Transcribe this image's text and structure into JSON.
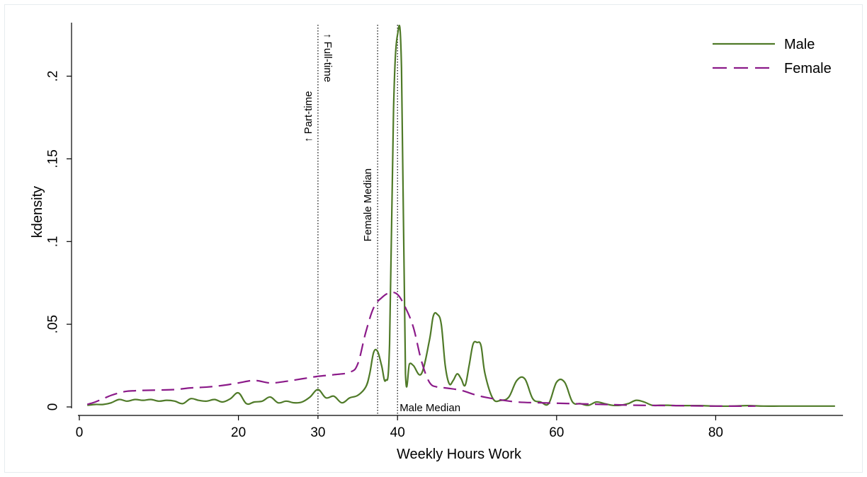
{
  "chart_data": {
    "type": "line",
    "xlabel": "Weekly Hours Work",
    "ylabel": "kdensity",
    "xlim": [
      0,
      96
    ],
    "ylim": [
      0,
      0.235
    ],
    "x_ticks": [
      {
        "value": 0,
        "label": "0"
      },
      {
        "value": 20,
        "label": "20"
      },
      {
        "value": 40,
        "label": "40"
      },
      {
        "value": 60,
        "label": "60"
      },
      {
        "value": 80,
        "label": "80"
      }
    ],
    "x_minor_ticks": [
      30
    ],
    "x_minor_labels": [
      {
        "value": 30,
        "label": "30"
      }
    ],
    "y_ticks": [
      {
        "value": 0,
        "label": "0"
      },
      {
        "value": 0.05,
        "label": ".05"
      },
      {
        "value": 0.1,
        "label": ".1"
      },
      {
        "value": 0.15,
        "label": ".15"
      },
      {
        "value": 0.2,
        "label": ".2"
      }
    ],
    "grid": false,
    "legend_position": "top-right",
    "reference_lines": [
      {
        "x": 30,
        "labels": [
          {
            "text": "↑ Part-time",
            "side": "left",
            "y": 0.16
          },
          {
            "text": "↑ Full-time",
            "side": "right",
            "y": 0.225
          }
        ]
      },
      {
        "x": 37.5,
        "labels": [
          {
            "text": "Female Median",
            "side": "left",
            "y": 0.1
          }
        ]
      },
      {
        "x": 40,
        "labels": [
          {
            "text": "Male Median",
            "side": "right-horizontal",
            "y": 0.0
          }
        ]
      }
    ],
    "series": [
      {
        "name": "Male",
        "color": "#4f7a28",
        "dash": "solid",
        "x": [
          1,
          2,
          3,
          4,
          5,
          6,
          7,
          8,
          9,
          10,
          11,
          12,
          13,
          14,
          15,
          16,
          17,
          18,
          19,
          20,
          21,
          22,
          23,
          24,
          25,
          26,
          27,
          28,
          29,
          30,
          31,
          32,
          33,
          34,
          35,
          36,
          36.5,
          37,
          37.5,
          38,
          38.5,
          39,
          39.5,
          40,
          40.5,
          41,
          41.5,
          42,
          43,
          44,
          44.5,
          45,
          45.5,
          46,
          46.5,
          47,
          47.5,
          48,
          48.5,
          49,
          49.5,
          50,
          50.5,
          51,
          52,
          53,
          54,
          55,
          56,
          57,
          58,
          59,
          60,
          61,
          62,
          63,
          64,
          65,
          66,
          67,
          68,
          69,
          70,
          71,
          72,
          73,
          74,
          75,
          76,
          78,
          80,
          82,
          84,
          86,
          88,
          90,
          92,
          94,
          95
        ],
        "y": [
          0.001,
          0.0015,
          0.0015,
          0.0025,
          0.0045,
          0.0035,
          0.0045,
          0.004,
          0.0045,
          0.0035,
          0.004,
          0.0035,
          0.002,
          0.005,
          0.004,
          0.0035,
          0.0045,
          0.003,
          0.005,
          0.0085,
          0.002,
          0.003,
          0.0035,
          0.006,
          0.0025,
          0.0035,
          0.0025,
          0.003,
          0.006,
          0.0105,
          0.0055,
          0.0065,
          0.0025,
          0.0055,
          0.007,
          0.012,
          0.02,
          0.033,
          0.0335,
          0.025,
          0.016,
          0.038,
          0.18,
          0.225,
          0.205,
          0.02,
          0.026,
          0.025,
          0.02,
          0.04,
          0.055,
          0.056,
          0.05,
          0.025,
          0.014,
          0.016,
          0.02,
          0.017,
          0.013,
          0.025,
          0.038,
          0.039,
          0.037,
          0.02,
          0.005,
          0.004,
          0.006,
          0.016,
          0.017,
          0.005,
          0.003,
          0.002,
          0.015,
          0.015,
          0.003,
          0.002,
          0.001,
          0.003,
          0.002,
          0.001,
          0.001,
          0.002,
          0.004,
          0.003,
          0.001,
          0.001,
          0.001,
          0.0008,
          0.0008,
          0.0008,
          0.0005,
          0.0005,
          0.0008,
          0.0005,
          0.0005,
          0.0005,
          0.0005,
          0.0005,
          0.0005
        ]
      },
      {
        "name": "Female",
        "color": "#8b1a89",
        "dash": "long-dash",
        "x": [
          1,
          2,
          3,
          4,
          5,
          6,
          7,
          8,
          10,
          12,
          14,
          16,
          18,
          20,
          22,
          24,
          26,
          28,
          30,
          32,
          34,
          35,
          36,
          37,
          38,
          39,
          40,
          41,
          42,
          43,
          44,
          45,
          46,
          48,
          50,
          52,
          55,
          58,
          62,
          66,
          70,
          75,
          80,
          85
        ],
        "y": [
          0.0015,
          0.003,
          0.005,
          0.007,
          0.0085,
          0.0095,
          0.0098,
          0.01,
          0.0102,
          0.0105,
          0.0115,
          0.012,
          0.013,
          0.0145,
          0.016,
          0.0145,
          0.0155,
          0.017,
          0.0185,
          0.0195,
          0.021,
          0.026,
          0.045,
          0.06,
          0.066,
          0.069,
          0.068,
          0.06,
          0.048,
          0.028,
          0.015,
          0.012,
          0.0115,
          0.01,
          0.007,
          0.005,
          0.003,
          0.0025,
          0.002,
          0.0015,
          0.001,
          0.0008,
          0.0005,
          0.0005
        ]
      }
    ]
  }
}
